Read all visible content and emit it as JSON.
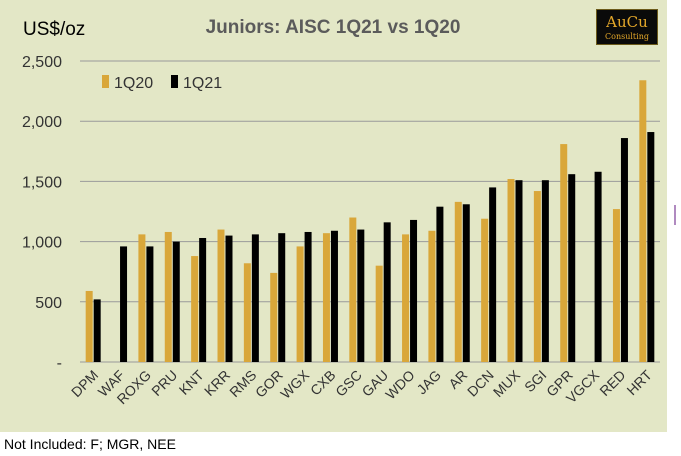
{
  "chart_data": {
    "type": "bar",
    "title": "Juniors:  AISC 1Q21 vs 1Q20",
    "ylabel": "US$/oz",
    "xlabel": "",
    "ylim": [
      0,
      2500
    ],
    "yticks": [
      0,
      500,
      1000,
      1500,
      2000,
      2500
    ],
    "ytick_labels": [
      "-",
      "500",
      "1,000",
      "1,500",
      "2,000",
      "2,500"
    ],
    "grid": true,
    "legend_position": "top-left",
    "categories": [
      "DPM",
      "WAF",
      "ROXG",
      "PRU",
      "KNT",
      "KRR",
      "RMS",
      "GOR",
      "WGX",
      "CXB",
      "GSC",
      "GAU",
      "WDO",
      "JAG",
      "AR",
      "DCN",
      "MUX",
      "SGI",
      "GPR",
      "VGCX",
      "RED",
      "HRT"
    ],
    "series": [
      {
        "name": "1Q20",
        "color": "#d9a73a",
        "values": [
          590,
          null,
          1060,
          1080,
          880,
          1100,
          820,
          740,
          960,
          1070,
          1200,
          800,
          1060,
          1090,
          1330,
          1190,
          1520,
          1420,
          1810,
          null,
          1270,
          2340
        ]
      },
      {
        "name": "1Q21",
        "color": "#000000",
        "values": [
          520,
          960,
          960,
          1000,
          1030,
          1050,
          1060,
          1070,
          1080,
          1090,
          1100,
          1160,
          1180,
          1290,
          1310,
          1450,
          1510,
          1510,
          1560,
          1580,
          1860,
          1910
        ]
      }
    ]
  },
  "branding": {
    "logo_text": "AuCu",
    "logo_subtext": "Consulting"
  },
  "footnote": "Not Included: F; MGR, NEE"
}
